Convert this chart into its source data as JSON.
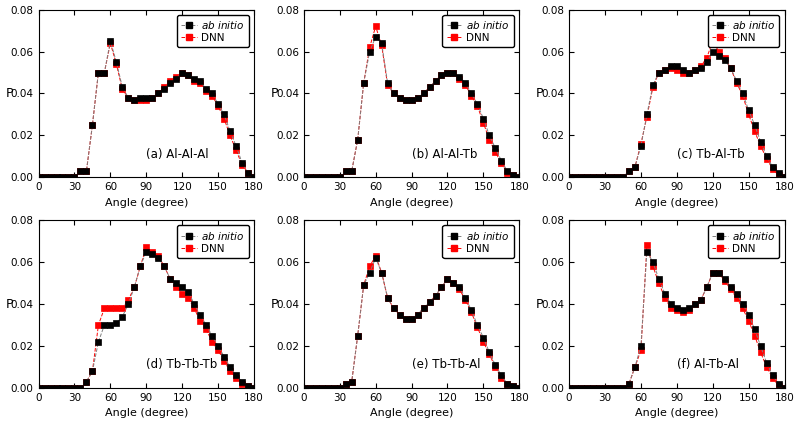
{
  "panels": [
    {
      "label": "(a) Al-Al-Al",
      "angles": [
        0,
        5,
        10,
        15,
        20,
        25,
        30,
        35,
        40,
        45,
        50,
        55,
        60,
        65,
        70,
        75,
        80,
        85,
        90,
        95,
        100,
        105,
        110,
        115,
        120,
        125,
        130,
        135,
        140,
        145,
        150,
        155,
        160,
        165,
        170,
        175,
        180
      ],
      "ab_initio": [
        0,
        0,
        0,
        0,
        0,
        0,
        0,
        0.003,
        0.003,
        0.025,
        0.05,
        0.05,
        0.065,
        0.055,
        0.043,
        0.038,
        0.037,
        0.038,
        0.038,
        0.038,
        0.04,
        0.042,
        0.045,
        0.047,
        0.05,
        0.049,
        0.047,
        0.046,
        0.042,
        0.04,
        0.035,
        0.03,
        0.022,
        0.015,
        0.007,
        0.002,
        0
      ],
      "dnn": [
        0,
        0,
        0,
        0,
        0,
        0,
        0,
        0.003,
        0.003,
        0.025,
        0.05,
        0.05,
        0.064,
        0.054,
        0.042,
        0.038,
        0.037,
        0.037,
        0.037,
        0.038,
        0.04,
        0.043,
        0.046,
        0.048,
        0.05,
        0.049,
        0.046,
        0.045,
        0.041,
        0.039,
        0.034,
        0.028,
        0.02,
        0.013,
        0.006,
        0.002,
        0
      ]
    },
    {
      "label": "(b) Al-Al-Tb",
      "angles": [
        0,
        5,
        10,
        15,
        20,
        25,
        30,
        35,
        40,
        45,
        50,
        55,
        60,
        65,
        70,
        75,
        80,
        85,
        90,
        95,
        100,
        105,
        110,
        115,
        120,
        125,
        130,
        135,
        140,
        145,
        150,
        155,
        160,
        165,
        170,
        175,
        180
      ],
      "ab_initio": [
        0,
        0,
        0,
        0,
        0,
        0,
        0,
        0.003,
        0.003,
        0.018,
        0.045,
        0.06,
        0.067,
        0.064,
        0.045,
        0.04,
        0.038,
        0.037,
        0.037,
        0.038,
        0.04,
        0.043,
        0.046,
        0.049,
        0.05,
        0.05,
        0.048,
        0.045,
        0.04,
        0.035,
        0.028,
        0.02,
        0.014,
        0.008,
        0.003,
        0.001,
        0
      ],
      "dnn": [
        0,
        0,
        0,
        0,
        0,
        0,
        0,
        0.003,
        0.003,
        0.018,
        0.045,
        0.062,
        0.072,
        0.063,
        0.044,
        0.04,
        0.038,
        0.037,
        0.037,
        0.038,
        0.04,
        0.043,
        0.046,
        0.049,
        0.05,
        0.05,
        0.047,
        0.044,
        0.039,
        0.034,
        0.026,
        0.018,
        0.012,
        0.007,
        0.002,
        0.001,
        0
      ]
    },
    {
      "label": "(c) Tb-Al-Tb",
      "angles": [
        0,
        5,
        10,
        15,
        20,
        25,
        30,
        35,
        40,
        45,
        50,
        55,
        60,
        65,
        70,
        75,
        80,
        85,
        90,
        95,
        100,
        105,
        110,
        115,
        120,
        125,
        130,
        135,
        140,
        145,
        150,
        155,
        160,
        165,
        170,
        175,
        180
      ],
      "ab_initio": [
        0,
        0,
        0,
        0,
        0,
        0,
        0,
        0,
        0,
        0,
        0.003,
        0.005,
        0.015,
        0.03,
        0.044,
        0.05,
        0.051,
        0.053,
        0.053,
        0.051,
        0.05,
        0.051,
        0.052,
        0.055,
        0.06,
        0.058,
        0.056,
        0.052,
        0.046,
        0.04,
        0.032,
        0.025,
        0.017,
        0.01,
        0.005,
        0.002,
        0
      ],
      "dnn": [
        0,
        0,
        0,
        0,
        0,
        0,
        0,
        0,
        0,
        0,
        0.003,
        0.005,
        0.016,
        0.029,
        0.043,
        0.05,
        0.051,
        0.052,
        0.051,
        0.05,
        0.05,
        0.051,
        0.053,
        0.057,
        0.065,
        0.06,
        0.057,
        0.052,
        0.045,
        0.039,
        0.03,
        0.022,
        0.015,
        0.009,
        0.004,
        0.001,
        0
      ]
    },
    {
      "label": "(d) Tb-Tb-Tb",
      "angles": [
        0,
        5,
        10,
        15,
        20,
        25,
        30,
        35,
        40,
        45,
        50,
        55,
        60,
        65,
        70,
        75,
        80,
        85,
        90,
        95,
        100,
        105,
        110,
        115,
        120,
        125,
        130,
        135,
        140,
        145,
        150,
        155,
        160,
        165,
        170,
        175,
        180
      ],
      "ab_initio": [
        0,
        0,
        0,
        0,
        0,
        0,
        0,
        0,
        0.003,
        0.008,
        0.022,
        0.03,
        0.03,
        0.031,
        0.034,
        0.04,
        0.048,
        0.058,
        0.065,
        0.064,
        0.062,
        0.058,
        0.052,
        0.05,
        0.048,
        0.046,
        0.04,
        0.035,
        0.03,
        0.025,
        0.02,
        0.015,
        0.01,
        0.006,
        0.003,
        0.001,
        0
      ],
      "dnn": [
        0,
        0,
        0,
        0,
        0,
        0,
        0,
        0,
        0.003,
        0.008,
        0.03,
        0.038,
        0.038,
        0.038,
        0.038,
        0.042,
        0.048,
        0.058,
        0.067,
        0.065,
        0.063,
        0.058,
        0.052,
        0.048,
        0.045,
        0.043,
        0.038,
        0.032,
        0.028,
        0.022,
        0.018,
        0.013,
        0.008,
        0.005,
        0.002,
        0.001,
        0
      ]
    },
    {
      "label": "(e) Tb-Tb-Al",
      "angles": [
        0,
        5,
        10,
        15,
        20,
        25,
        30,
        35,
        40,
        45,
        50,
        55,
        60,
        65,
        70,
        75,
        80,
        85,
        90,
        95,
        100,
        105,
        110,
        115,
        120,
        125,
        130,
        135,
        140,
        145,
        150,
        155,
        160,
        165,
        170,
        175,
        180
      ],
      "ab_initio": [
        0,
        0,
        0,
        0,
        0,
        0,
        0,
        0.002,
        0.003,
        0.025,
        0.049,
        0.055,
        0.062,
        0.055,
        0.043,
        0.038,
        0.035,
        0.033,
        0.033,
        0.035,
        0.038,
        0.041,
        0.044,
        0.048,
        0.052,
        0.05,
        0.048,
        0.043,
        0.037,
        0.03,
        0.024,
        0.017,
        0.011,
        0.006,
        0.002,
        0.001,
        0
      ],
      "dnn": [
        0,
        0,
        0,
        0,
        0,
        0,
        0,
        0.002,
        0.003,
        0.025,
        0.049,
        0.058,
        0.063,
        0.055,
        0.043,
        0.038,
        0.035,
        0.033,
        0.033,
        0.035,
        0.038,
        0.041,
        0.044,
        0.048,
        0.052,
        0.05,
        0.047,
        0.042,
        0.036,
        0.029,
        0.022,
        0.016,
        0.01,
        0.005,
        0.002,
        0.001,
        0
      ]
    },
    {
      "label": "(f) Al-Tb-Al",
      "angles": [
        0,
        5,
        10,
        15,
        20,
        25,
        30,
        35,
        40,
        45,
        50,
        55,
        60,
        65,
        70,
        75,
        80,
        85,
        90,
        95,
        100,
        105,
        110,
        115,
        120,
        125,
        130,
        135,
        140,
        145,
        150,
        155,
        160,
        165,
        170,
        175,
        180
      ],
      "ab_initio": [
        0,
        0,
        0,
        0,
        0,
        0,
        0,
        0,
        0,
        0,
        0.002,
        0.01,
        0.02,
        0.065,
        0.06,
        0.052,
        0.045,
        0.04,
        0.038,
        0.037,
        0.038,
        0.04,
        0.042,
        0.048,
        0.055,
        0.055,
        0.052,
        0.048,
        0.045,
        0.04,
        0.035,
        0.028,
        0.02,
        0.012,
        0.006,
        0.002,
        0
      ],
      "dnn": [
        0,
        0,
        0,
        0,
        0,
        0,
        0,
        0,
        0,
        0,
        0.002,
        0.01,
        0.018,
        0.068,
        0.058,
        0.05,
        0.043,
        0.038,
        0.037,
        0.036,
        0.037,
        0.04,
        0.042,
        0.048,
        0.055,
        0.055,
        0.051,
        0.047,
        0.043,
        0.038,
        0.032,
        0.025,
        0.017,
        0.01,
        0.005,
        0.001,
        0
      ]
    }
  ],
  "ab_initio_color": "#808080",
  "dnn_color": "#ff0000",
  "marker_ab": "s",
  "marker_dnn": "s",
  "markersize": 4,
  "xlabel": "Angle (degree)",
  "ylabel": "P",
  "xlim": [
    0,
    180
  ],
  "ylim": [
    0,
    0.08
  ],
  "xticks": [
    0,
    30,
    60,
    90,
    120,
    150,
    180
  ],
  "yticks": [
    0.0,
    0.02,
    0.04,
    0.06,
    0.08
  ],
  "background_color": "#ffffff",
  "ab_marker_color": "#000000",
  "dnn_marker_color": "#ff0000"
}
